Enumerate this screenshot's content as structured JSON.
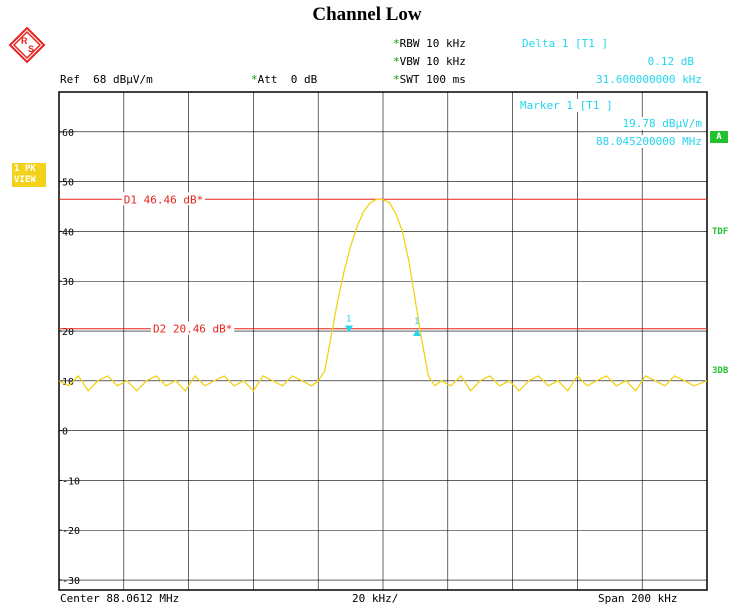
{
  "chart_data": {
    "type": "line",
    "title": "Channel Low",
    "settings": {
      "rbw": "RBW 10 kHz",
      "vbw": "VBW 10 kHz",
      "swt": "SWT 100 ms",
      "ref": "Ref  68 dBµV/m",
      "att": "Att  0 dB"
    },
    "delta_marker": {
      "label": "Delta 1 [T1 ]",
      "value": "0.12 dB",
      "freq": "31.600000000 kHz"
    },
    "marker": {
      "label": "Marker 1 [T1 ]",
      "value": "19.78 dBµV/m",
      "freq": "88.045200000 MHz"
    },
    "x_axis": {
      "center": "Center 88.0612 MHz",
      "per_div": "20 kHz/",
      "span": "Span 200 kHz",
      "range_khz": [
        -100,
        100
      ]
    },
    "y_axis": {
      "ylim": [
        -32,
        68
      ],
      "ticks": [
        60,
        50,
        40,
        30,
        20,
        10,
        0,
        -10,
        -20,
        -30
      ]
    },
    "lines": [
      {
        "name": "D1 46.46 dB*",
        "level": 46.46,
        "color": "#e8231d"
      },
      {
        "name": "D2 20.46 dB*",
        "level": 20.46,
        "color": "#e8231d"
      }
    ],
    "markers_on_trace": [
      {
        "label": "1",
        "x_khz": -10.5,
        "y": 20.3,
        "shape": "down"
      },
      {
        "label": "1",
        "x_khz": 10.5,
        "y": 19.8,
        "shape": "up"
      }
    ],
    "series": [
      {
        "color": "#f2d21b",
        "points": [
          [
            -100,
            10
          ],
          [
            -97,
            9
          ],
          [
            -94,
            11
          ],
          [
            -91,
            8
          ],
          [
            -88,
            10
          ],
          [
            -85,
            11
          ],
          [
            -82,
            9
          ],
          [
            -79,
            10
          ],
          [
            -76,
            8
          ],
          [
            -73,
            10
          ],
          [
            -70,
            11
          ],
          [
            -67,
            9
          ],
          [
            -64,
            10
          ],
          [
            -61,
            8
          ],
          [
            -58,
            11
          ],
          [
            -55,
            9
          ],
          [
            -52,
            10
          ],
          [
            -49,
            11
          ],
          [
            -46,
            9
          ],
          [
            -43,
            10
          ],
          [
            -40,
            8
          ],
          [
            -37,
            11
          ],
          [
            -34,
            10
          ],
          [
            -31,
            9
          ],
          [
            -28,
            11
          ],
          [
            -25,
            10
          ],
          [
            -22,
            9
          ],
          [
            -20,
            10
          ],
          [
            -18,
            12
          ],
          [
            -16,
            19
          ],
          [
            -14,
            26
          ],
          [
            -12,
            32
          ],
          [
            -10,
            37
          ],
          [
            -8,
            41
          ],
          [
            -6,
            44
          ],
          [
            -4,
            45.7
          ],
          [
            -2,
            46.46
          ],
          [
            0,
            46.4
          ],
          [
            2,
            45.8
          ],
          [
            4,
            43.5
          ],
          [
            6,
            40
          ],
          [
            8,
            34
          ],
          [
            10,
            26
          ],
          [
            12,
            18
          ],
          [
            14,
            11
          ],
          [
            16,
            9
          ],
          [
            18,
            10
          ],
          [
            21,
            9
          ],
          [
            24,
            11
          ],
          [
            27,
            8
          ],
          [
            30,
            10
          ],
          [
            33,
            11
          ],
          [
            36,
            9
          ],
          [
            39,
            10
          ],
          [
            42,
            8
          ],
          [
            45,
            10
          ],
          [
            48,
            11
          ],
          [
            51,
            9
          ],
          [
            54,
            10
          ],
          [
            57,
            8
          ],
          [
            60,
            11
          ],
          [
            63,
            9
          ],
          [
            66,
            10
          ],
          [
            69,
            11
          ],
          [
            72,
            9
          ],
          [
            75,
            10
          ],
          [
            78,
            8
          ],
          [
            81,
            11
          ],
          [
            84,
            10
          ],
          [
            87,
            9
          ],
          [
            90,
            11
          ],
          [
            93,
            10
          ],
          [
            96,
            9
          ],
          [
            100,
            10
          ]
        ]
      }
    ],
    "grid": true,
    "side_labels": [
      "1 PK VIEW",
      "A",
      "TDF",
      "3DB"
    ]
  }
}
